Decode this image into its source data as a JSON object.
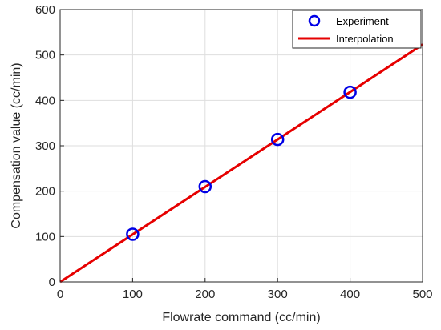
{
  "chart_data": {
    "type": "line",
    "title": "",
    "xlabel": "Flowrate command (cc/min)",
    "ylabel": "Compensation value (cc/min)",
    "xlim": [
      0,
      500
    ],
    "ylim": [
      0,
      600
    ],
    "xticks": [
      0,
      100,
      200,
      300,
      400,
      500
    ],
    "yticks": [
      0,
      100,
      200,
      300,
      400,
      500,
      600
    ],
    "grid": true,
    "legend_position": "top-right",
    "series": [
      {
        "name": "Experiment",
        "kind": "scatter",
        "marker": "circle",
        "color": "#0000e6",
        "x": [
          100,
          200,
          300,
          400
        ],
        "y": [
          105,
          210,
          314,
          418
        ]
      },
      {
        "name": "Interpolation",
        "kind": "line",
        "color": "#e60000",
        "x": [
          0,
          500
        ],
        "y": [
          0,
          523
        ]
      }
    ]
  }
}
